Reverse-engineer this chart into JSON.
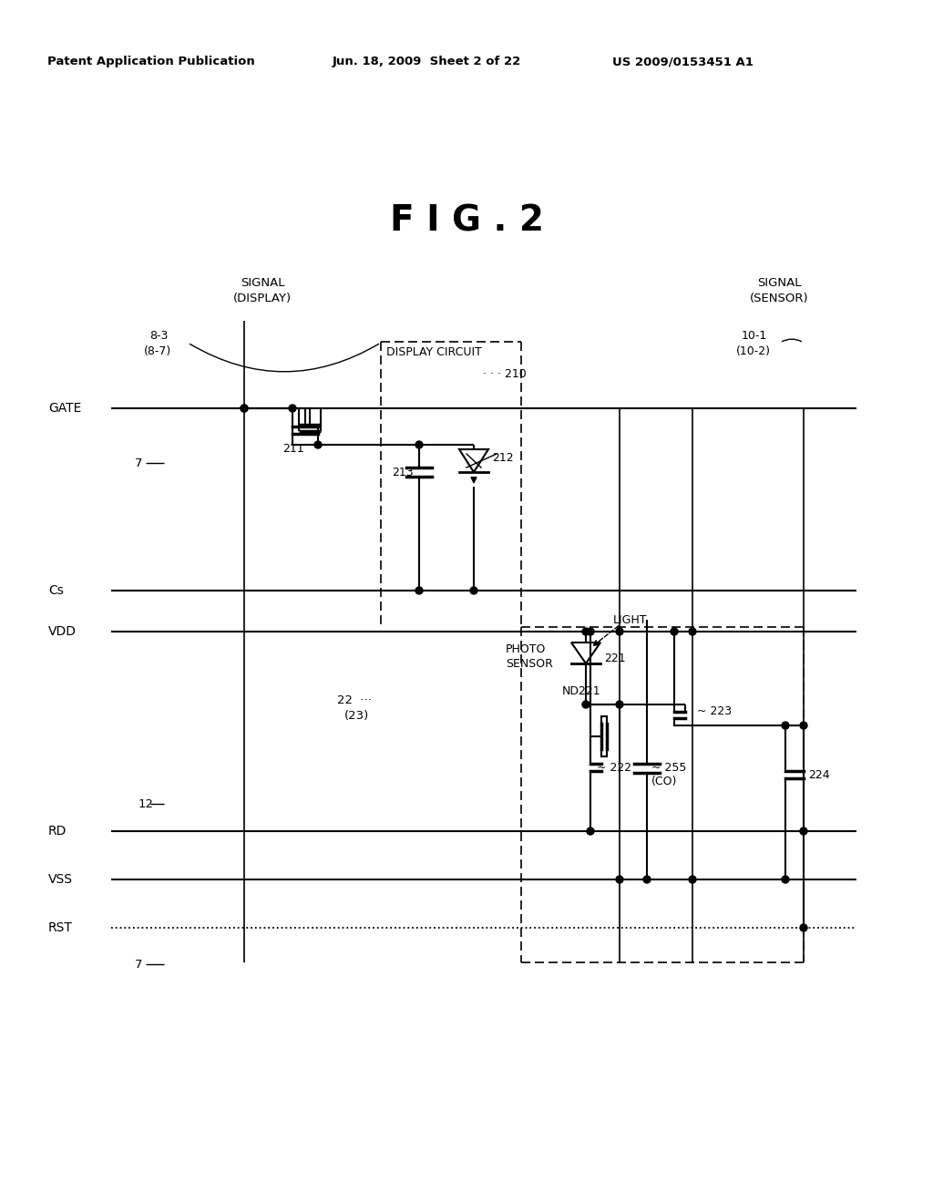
{
  "header_left": "Patent Application Publication",
  "header_center": "Jun. 18, 2009  Sheet 2 of 22",
  "header_right": "US 2009/0153451 A1",
  "title": "F I G . 2",
  "bg": "#ffffff",
  "yGATE": 448,
  "yCs": 648,
  "yVDD": 693,
  "yRD": 912,
  "yVSS": 965,
  "yRST": 1018,
  "xSD": 268,
  "xDCL": 418,
  "xDCR": 572,
  "xSC1": 680,
  "xSC2": 760,
  "xSCR": 882,
  "xBus": 122,
  "xBusR": 940
}
